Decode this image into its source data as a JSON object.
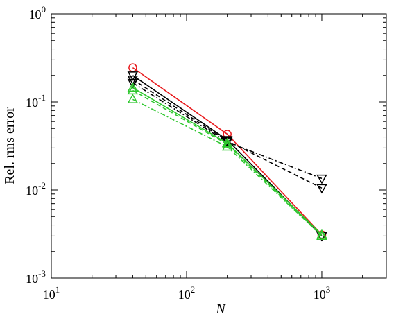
{
  "chart_data": {
    "type": "line",
    "x_scale": "log",
    "y_scale": "log",
    "xlim": [
      10,
      3000
    ],
    "ylim": [
      0.001,
      1
    ],
    "xlabel": "N",
    "ylabel": "Rel. rms error",
    "x_ticks": [
      {
        "value": 10,
        "base": "10",
        "exp": "1"
      },
      {
        "value": 100,
        "base": "10",
        "exp": "2"
      },
      {
        "value": 1000,
        "base": "10",
        "exp": "3"
      }
    ],
    "y_ticks": [
      {
        "value": 0.001,
        "base": "10",
        "exp": "-3"
      },
      {
        "value": 0.01,
        "base": "10",
        "exp": "-2"
      },
      {
        "value": 0.1,
        "base": "10",
        "exp": "-1"
      },
      {
        "value": 1,
        "base": "10",
        "exp": "0"
      }
    ],
    "grid": false,
    "series": [
      {
        "color": "#e8191c",
        "line_style": "solid",
        "marker": "circle",
        "x": [
          40,
          200,
          1000
        ],
        "y": [
          0.245,
          0.043,
          0.0031
        ]
      },
      {
        "color": "#000000",
        "line_style": "solid",
        "marker": "triangle-down",
        "x": [
          40,
          200,
          1000
        ],
        "y": [
          0.2,
          0.037,
          0.003
        ]
      },
      {
        "color": "#000000",
        "line_style": "dashed",
        "marker": "triangle-down",
        "x": [
          40,
          200,
          1000
        ],
        "y": [
          0.18,
          0.036,
          0.0105
        ]
      },
      {
        "color": "#000000",
        "line_style": "dashdot",
        "marker": "triangle-down",
        "x": [
          40,
          200,
          1000
        ],
        "y": [
          0.165,
          0.035,
          0.0135
        ]
      },
      {
        "color": "#2ec72e",
        "line_style": "solid",
        "marker": "triangle-up",
        "x": [
          40,
          200,
          1000
        ],
        "y": [
          0.145,
          0.034,
          0.0031
        ]
      },
      {
        "color": "#2ec72e",
        "line_style": "dashed",
        "marker": "triangle-up",
        "x": [
          40,
          200,
          1000
        ],
        "y": [
          0.135,
          0.033,
          0.003
        ]
      },
      {
        "color": "#2ec72e",
        "line_style": "dashdot",
        "marker": "triangle-up",
        "x": [
          40,
          200,
          1000
        ],
        "y": [
          0.107,
          0.031,
          0.003
        ]
      }
    ]
  }
}
